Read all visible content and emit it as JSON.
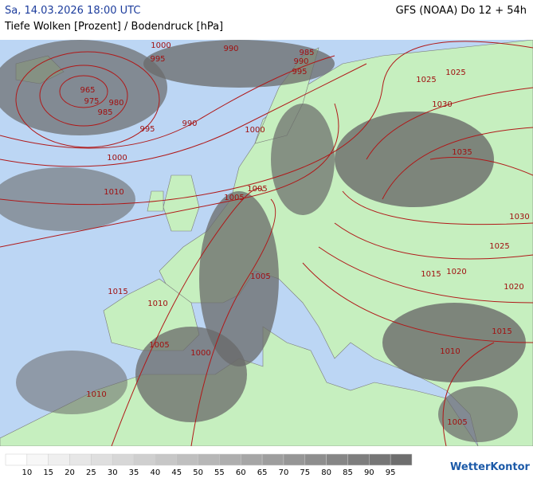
{
  "header": {
    "datetime": "Sa, 14.03.2026 18:00 UTC",
    "model": "GFS (NOAA) Do 12 + 54h",
    "subtitle": "Tiefe Wolken [Prozent] / Bodendruck [hPa]"
  },
  "isobar_labels": [
    1000,
    995,
    990,
    985,
    990,
    995,
    965,
    975,
    980,
    985,
    995,
    990,
    1000,
    1000,
    1025,
    1025,
    1030,
    1035,
    1010,
    1005,
    1005,
    1030,
    1025,
    1020,
    1015,
    1005,
    1015,
    1010,
    1020,
    1015,
    1005,
    1000,
    1010,
    1010,
    1005
  ],
  "legend": {
    "labels": [
      10,
      15,
      20,
      25,
      30,
      35,
      40,
      45,
      50,
      55,
      60,
      65,
      70,
      75,
      80,
      85,
      90,
      95
    ]
  },
  "logo": "WetterKontor"
}
